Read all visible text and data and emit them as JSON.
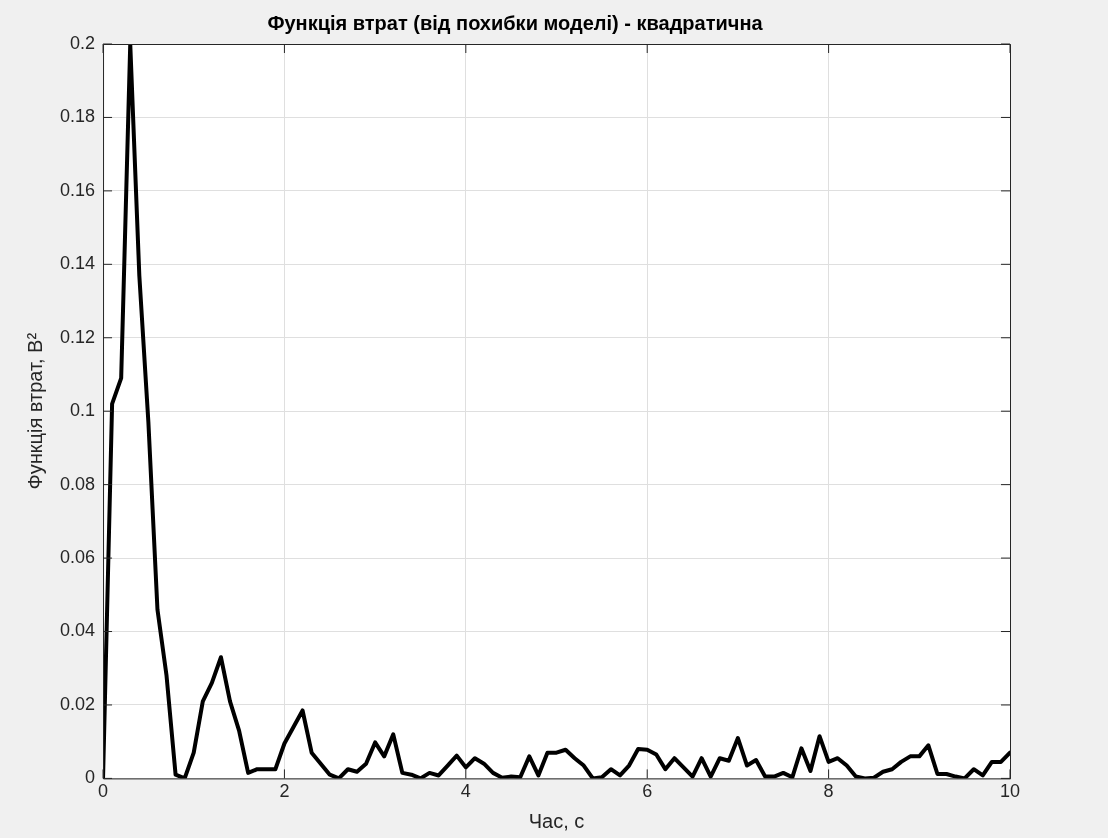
{
  "chart_data": {
    "type": "line",
    "title": "Функція втрат (від похибки моделі) - квадратична",
    "xlabel": "Час, с",
    "ylabel": "Функція втрат, В²",
    "x": [
      0,
      0.1,
      0.2,
      0.3,
      0.4,
      0.5,
      0.6,
      0.7,
      0.8,
      0.9,
      1,
      1.1,
      1.2,
      1.3,
      1.4,
      1.5,
      1.6,
      1.7,
      1.8,
      1.9,
      2,
      2.1,
      2.2,
      2.3,
      2.4,
      2.5,
      2.6,
      2.7,
      2.8,
      2.9,
      3,
      3.1,
      3.2,
      3.3,
      3.4,
      3.5,
      3.6,
      3.7,
      3.8,
      3.9,
      4,
      4.1,
      4.2,
      4.3,
      4.4,
      4.5,
      4.6,
      4.7,
      4.8,
      4.9,
      5,
      5.1,
      5.2,
      5.3,
      5.4,
      5.5,
      5.6,
      5.7,
      5.8,
      5.9,
      6,
      6.1,
      6.2,
      6.3,
      6.4,
      6.5,
      6.6,
      6.7,
      6.8,
      6.9,
      7,
      7.1,
      7.2,
      7.3,
      7.4,
      7.5,
      7.6,
      7.7,
      7.8,
      7.9,
      8,
      8.1,
      8.2,
      8.3,
      8.4,
      8.5,
      8.6,
      8.7,
      8.8,
      8.9,
      9,
      9.1,
      9.2,
      9.3,
      9.4,
      9.5,
      9.6,
      9.7,
      9.8,
      9.9,
      10
    ],
    "series": [
      {
        "color": "#000000",
        "values": [
          0,
          0.102,
          0.109,
          0.2,
          0.137,
          0.097,
          0.046,
          0.028,
          0.001,
          0,
          0.007,
          0.021,
          0.026,
          0.033,
          0.021,
          0.013,
          0.0015,
          0.0025,
          0.0025,
          0.0025,
          0.0095,
          0.014,
          0.0185,
          0.007,
          0.004,
          0.001,
          0,
          0.0025,
          0.0018,
          0.004,
          0.0098,
          0.006,
          0.012,
          0.0015,
          0.001,
          0,
          0.0015,
          0.0008,
          0.0035,
          0.0062,
          0.003,
          0.0055,
          0.004,
          0.0015,
          0.0002,
          0.0005,
          0.0003,
          0.006,
          0.0008,
          0.007,
          0.007,
          0.0078,
          0.0055,
          0.0035,
          0,
          0.0003,
          0.0025,
          0.0008,
          0.0035,
          0.008,
          0.0078,
          0.0065,
          0.0025,
          0.0055,
          0.003,
          0.0005,
          0.0055,
          0.0005,
          0.0055,
          0.0048,
          0.011,
          0.0035,
          0.005,
          0.0005,
          0.0005,
          0.0015,
          0.0003,
          0.0082,
          0.002,
          0.0115,
          0.0045,
          0.0055,
          0.0035,
          0.0005,
          0,
          0.0002,
          0.0018,
          0.0025,
          0.0045,
          0.006,
          0.006,
          0.009,
          0.0012,
          0.0012,
          0.0005,
          0,
          0.0025,
          0.0008,
          0.0045,
          0.0045,
          0.007
        ]
      }
    ],
    "xlim": [
      0,
      10
    ],
    "xticks": [
      0,
      2,
      4,
      6,
      8,
      10
    ],
    "ylim": [
      0,
      0.2
    ],
    "yticks": [
      0,
      0.02,
      0.04,
      0.06,
      0.08,
      0.1,
      0.12,
      0.14,
      0.16,
      0.18,
      0.2
    ],
    "grid": true,
    "legend": false,
    "marker": "none",
    "line_style": "solid"
  }
}
